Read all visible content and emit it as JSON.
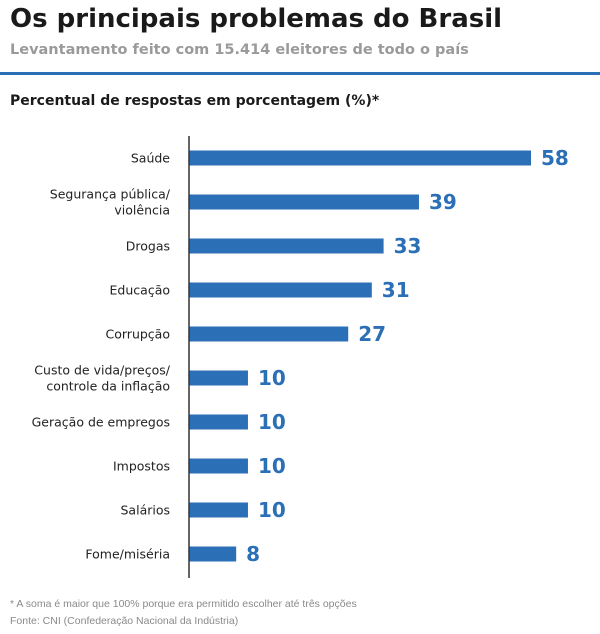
{
  "header": {
    "title": "Os principais problemas do Brasil",
    "subtitle": "Levantamento feito com 15.414 eleitores de todo o país"
  },
  "accent_color": "#2b6fb6",
  "chart_label": "Percentual de respostas em porcentagem (%)*",
  "chart_data": {
    "type": "bar",
    "orientation": "horizontal",
    "categories": [
      [
        "Saúde"
      ],
      [
        "Segurança pública/",
        "violência"
      ],
      [
        "Drogas"
      ],
      [
        "Educação"
      ],
      [
        "Corrupção"
      ],
      [
        "Custo de vida/preços/",
        "controle da inflação"
      ],
      [
        "Geração de empregos"
      ],
      [
        "Impostos"
      ],
      [
        "Salários"
      ],
      [
        "Fome/miséria"
      ]
    ],
    "values": [
      58,
      39,
      33,
      31,
      27,
      10,
      10,
      10,
      10,
      8
    ],
    "value_labels": [
      "58",
      "39",
      "33",
      "31",
      "27",
      "10",
      "10",
      "10",
      "10",
      "8"
    ],
    "xlim": [
      0,
      60
    ],
    "grid": false,
    "bar_color": "#2b6fb6"
  },
  "footer": {
    "footnote": "* A soma é maior que 100% porque era permitido escolher até três opções",
    "source": "Fonte: CNI (Confederação Nacional da Indústria)"
  }
}
